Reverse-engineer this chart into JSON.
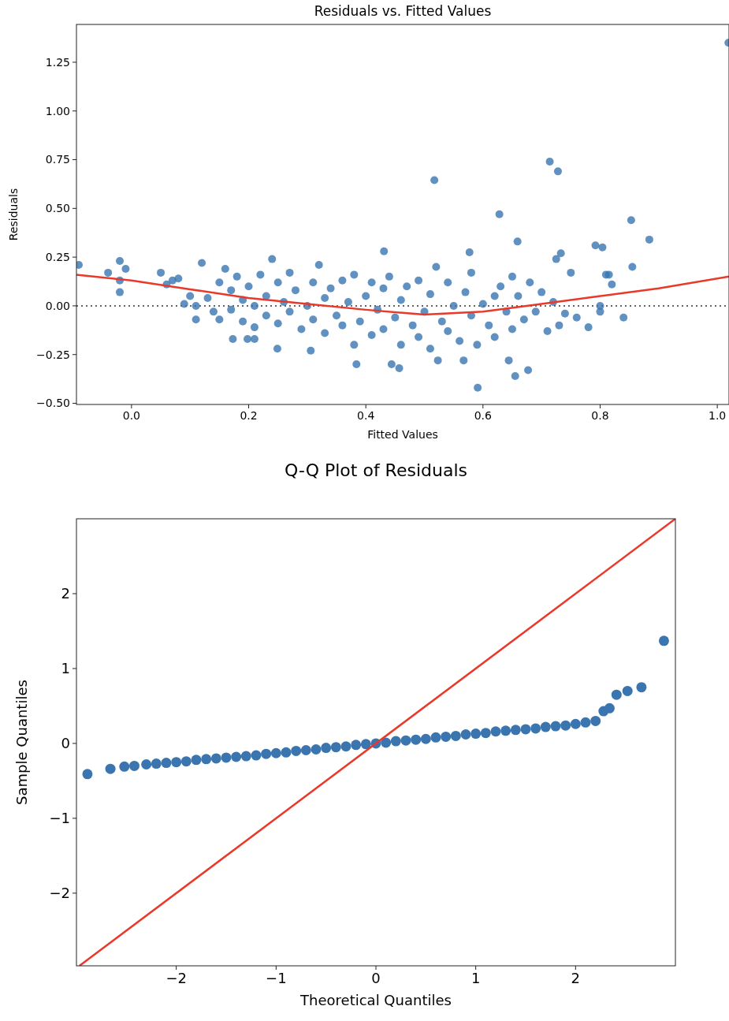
{
  "chart_data": [
    {
      "type": "scatter",
      "title": "Residuals vs. Fitted Values",
      "xlabel": "Fitted Values",
      "ylabel": "Residuals",
      "xlim": [
        -0.094,
        1.02
      ],
      "ylim": [
        -0.506,
        1.444
      ],
      "xticks": [
        {
          "value": 0,
          "label": "0.0"
        },
        {
          "value": 0.2,
          "label": "0.2"
        },
        {
          "value": 0.4,
          "label": "0.4"
        },
        {
          "value": 0.6,
          "label": "0.6"
        },
        {
          "value": 0.8,
          "label": "0.8"
        },
        {
          "value": 1,
          "label": "1.0"
        }
      ],
      "yticks": [
        {
          "value": -0.5,
          "label": "−0.50"
        },
        {
          "value": -0.25,
          "label": "−0.25"
        },
        {
          "value": 0,
          "label": "0.00"
        },
        {
          "value": 0.25,
          "label": "0.25"
        },
        {
          "value": 0.5,
          "label": "0.50"
        },
        {
          "value": 0.75,
          "label": "0.75"
        },
        {
          "value": 1,
          "label": "1.00"
        },
        {
          "value": 1.25,
          "label": "1.25"
        }
      ],
      "ref_lines": [
        {
          "axis": "y",
          "value": 0,
          "color": "#333333",
          "line_style": "dotted"
        }
      ],
      "series": [
        {
          "marker": "circle",
          "color": "#3a75b0",
          "x": [
            1.019,
            0.714,
            0.728,
            0.517,
            0.628,
            0.853,
            0.884,
            0.659,
            0.792,
            0.804,
            0.431,
            0.577,
            0.733,
            0.725,
            0.855,
            0.815,
            -0.09,
            -0.02,
            -0.01,
            -0.04,
            -0.02,
            -0.02,
            0.591,
            0.655,
            0.677,
            0.457,
            0.444,
            0.384,
            0.567,
            0.644,
            0.523,
            0.249,
            0.306,
            0.173,
            0.198,
            0.21,
            0.05,
            0.06,
            0.07,
            0.08,
            0.09,
            0.1,
            0.11,
            0.11,
            0.12,
            0.13,
            0.14,
            0.15,
            0.15,
            0.16,
            0.17,
            0.17,
            0.18,
            0.19,
            0.19,
            0.2,
            0.21,
            0.21,
            0.22,
            0.23,
            0.23,
            0.24,
            0.25,
            0.25,
            0.26,
            0.27,
            0.27,
            0.28,
            0.29,
            0.3,
            0.31,
            0.31,
            0.32,
            0.33,
            0.33,
            0.34,
            0.35,
            0.36,
            0.36,
            0.37,
            0.38,
            0.38,
            0.39,
            0.4,
            0.41,
            0.41,
            0.42,
            0.43,
            0.43,
            0.44,
            0.45,
            0.46,
            0.46,
            0.47,
            0.48,
            0.49,
            0.49,
            0.5,
            0.51,
            0.51,
            0.52,
            0.53,
            0.54,
            0.54,
            0.55,
            0.56,
            0.57,
            0.58,
            0.58,
            0.59,
            0.6,
            0.61,
            0.62,
            0.62,
            0.63,
            0.64,
            0.65,
            0.65,
            0.66,
            0.67,
            0.68,
            0.69,
            0.7,
            0.71,
            0.72,
            0.73,
            0.74,
            0.75,
            0.76,
            0.78,
            0.8,
            0.8,
            0.81,
            0.82,
            0.84
          ],
          "values": [
            1.35,
            0.74,
            0.69,
            0.645,
            0.47,
            0.44,
            0.34,
            0.33,
            0.31,
            0.3,
            0.28,
            0.275,
            0.27,
            0.24,
            0.2,
            0.16,
            0.21,
            0.23,
            0.19,
            0.17,
            0.13,
            0.07,
            -0.42,
            -0.36,
            -0.33,
            -0.32,
            -0.3,
            -0.3,
            -0.28,
            -0.28,
            -0.28,
            -0.22,
            -0.23,
            -0.17,
            -0.17,
            -0.17,
            0.17,
            0.11,
            0.13,
            0.14,
            0.01,
            0.05,
            0.0,
            -0.07,
            0.22,
            0.04,
            -0.03,
            0.12,
            -0.07,
            0.19,
            0.08,
            -0.02,
            0.15,
            0.03,
            -0.08,
            0.1,
            0.0,
            -0.11,
            0.16,
            0.05,
            -0.05,
            0.24,
            0.12,
            -0.09,
            0.02,
            0.17,
            -0.03,
            0.08,
            -0.12,
            0.0,
            0.12,
            -0.07,
            0.21,
            0.04,
            -0.14,
            0.09,
            -0.05,
            0.13,
            -0.1,
            0.02,
            0.16,
            -0.2,
            -0.08,
            0.05,
            0.12,
            -0.15,
            -0.02,
            0.09,
            -0.12,
            0.15,
            -0.06,
            0.03,
            -0.2,
            0.1,
            -0.1,
            0.13,
            -0.16,
            -0.03,
            0.06,
            -0.22,
            0.2,
            -0.08,
            0.12,
            -0.13,
            0.0,
            -0.18,
            0.07,
            -0.05,
            0.17,
            -0.2,
            0.01,
            -0.1,
            0.05,
            -0.16,
            0.1,
            -0.03,
            0.15,
            -0.12,
            0.05,
            -0.07,
            0.12,
            -0.03,
            0.07,
            -0.13,
            0.02,
            -0.1,
            -0.04,
            0.17,
            -0.06,
            -0.11,
            0.0,
            -0.03,
            0.16,
            0.11,
            -0.06
          ]
        },
        {
          "type": "line",
          "color": "#e8392b",
          "x": [
            -0.094,
            0.0,
            0.1,
            0.2,
            0.3,
            0.4,
            0.5,
            0.6,
            0.7,
            0.8,
            0.9,
            1.02
          ],
          "values": [
            0.16,
            0.13,
            0.085,
            0.04,
            0.01,
            -0.02,
            -0.045,
            -0.03,
            0.01,
            0.05,
            0.09,
            0.15
          ]
        }
      ]
    },
    {
      "type": "scatter",
      "title": "Q-Q Plot of Residuals",
      "xlabel": "Theoretical Quantiles",
      "ylabel": "Sample Quantiles",
      "xlim": [
        -3,
        3
      ],
      "ylim": [
        -2.97,
        3
      ],
      "xticks": [
        {
          "value": -2,
          "label": "−2"
        },
        {
          "value": -1,
          "label": "−1"
        },
        0,
        1,
        2
      ],
      "yticks": [
        {
          "value": -2,
          "label": "−2"
        },
        {
          "value": -1,
          "label": "−1"
        },
        0,
        1,
        2
      ],
      "series": [
        {
          "marker": "circle",
          "color": "#3a75b0",
          "x": [
            -2.89,
            -2.66,
            -2.52,
            -2.42,
            -2.3,
            -2.2,
            -2.1,
            -2.0,
            -1.9,
            -1.8,
            -1.7,
            -1.6,
            -1.5,
            -1.4,
            -1.3,
            -1.2,
            -1.1,
            -1.0,
            -0.9,
            -0.8,
            -0.7,
            -0.6,
            -0.5,
            -0.4,
            -0.3,
            -0.2,
            -0.1,
            0.0,
            0.1,
            0.2,
            0.3,
            0.4,
            0.5,
            0.6,
            0.7,
            0.8,
            0.9,
            1.0,
            1.1,
            1.2,
            1.3,
            1.4,
            1.5,
            1.6,
            1.7,
            1.8,
            1.9,
            2.0,
            2.1,
            2.2,
            2.28,
            2.34,
            2.41,
            2.52,
            2.66,
            2.885
          ],
          "values": [
            -0.41,
            -0.34,
            -0.31,
            -0.3,
            -0.28,
            -0.27,
            -0.26,
            -0.25,
            -0.24,
            -0.22,
            -0.21,
            -0.2,
            -0.19,
            -0.18,
            -0.17,
            -0.16,
            -0.14,
            -0.13,
            -0.12,
            -0.1,
            -0.09,
            -0.08,
            -0.06,
            -0.05,
            -0.04,
            -0.02,
            -0.01,
            0.0,
            0.01,
            0.03,
            0.04,
            0.05,
            0.06,
            0.08,
            0.09,
            0.1,
            0.12,
            0.13,
            0.14,
            0.16,
            0.17,
            0.18,
            0.19,
            0.2,
            0.22,
            0.23,
            0.24,
            0.26,
            0.28,
            0.3,
            0.43,
            0.47,
            0.65,
            0.7,
            0.75,
            1.37
          ]
        },
        {
          "type": "line",
          "color": "#e8392b",
          "x": [
            -2.97,
            3
          ],
          "values": [
            -2.97,
            3
          ]
        }
      ]
    }
  ]
}
